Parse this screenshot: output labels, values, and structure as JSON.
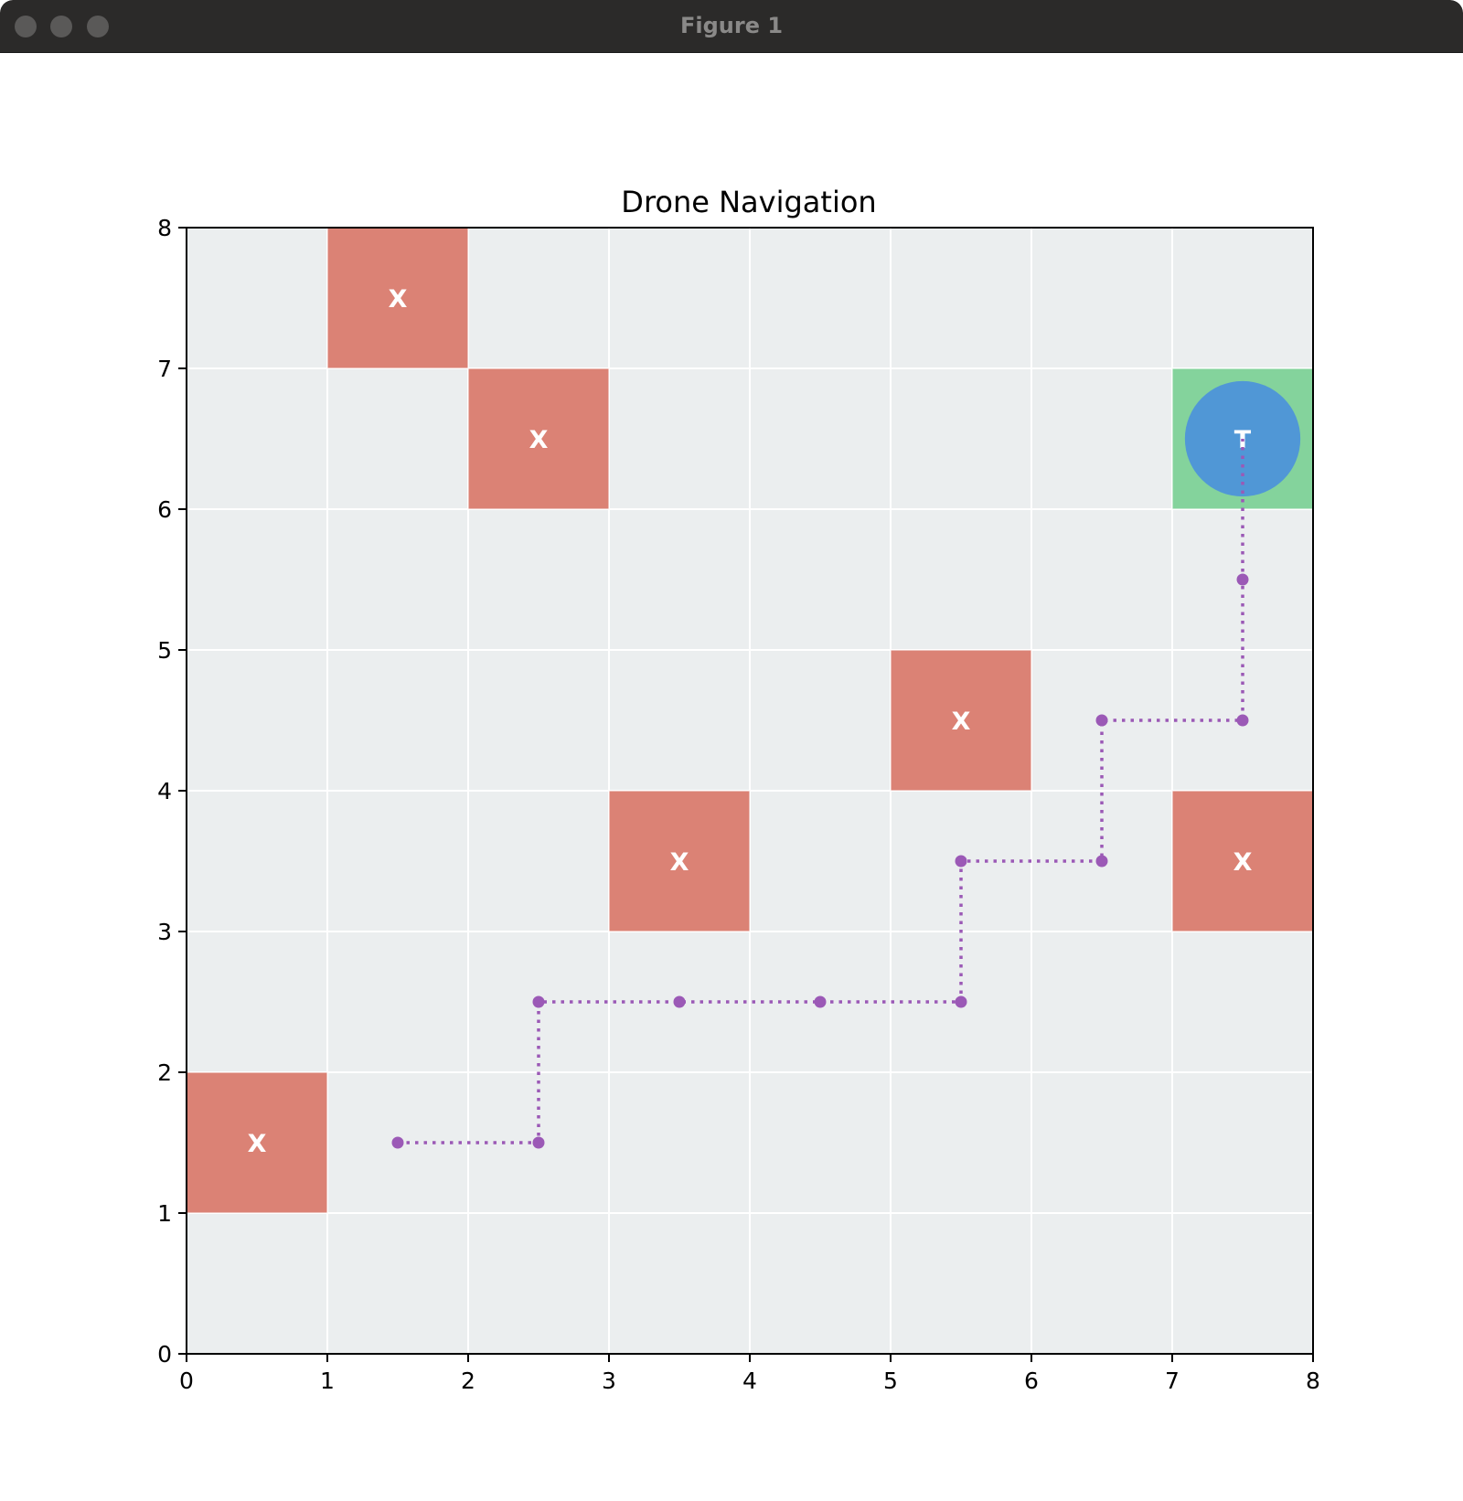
{
  "window": {
    "title": "Figure 1"
  },
  "chart_data": {
    "type": "heatmap",
    "title": "Drone Navigation",
    "xlabel": "",
    "ylabel": "",
    "xlim": [
      0,
      8
    ],
    "ylim": [
      0,
      8
    ],
    "xticks": [
      "0",
      "1",
      "2",
      "3",
      "4",
      "5",
      "6",
      "7",
      "8"
    ],
    "yticks": [
      "0",
      "1",
      "2",
      "3",
      "4",
      "5",
      "6",
      "7",
      "8"
    ],
    "grid": true,
    "obstacles": [
      {
        "col": 0,
        "row": 1,
        "label": "X"
      },
      {
        "col": 1,
        "row": 7,
        "label": "X"
      },
      {
        "col": 2,
        "row": 6,
        "label": "X"
      },
      {
        "col": 3,
        "row": 3,
        "label": "X"
      },
      {
        "col": 5,
        "row": 4,
        "label": "X"
      },
      {
        "col": 7,
        "row": 3,
        "label": "X"
      }
    ],
    "target": {
      "col": 7,
      "row": 6,
      "label": "T"
    },
    "drone": {
      "x": 7.5,
      "y": 6.5
    },
    "path": {
      "x": [
        1.5,
        2.5,
        2.5,
        3.5,
        4.5,
        5.5,
        5.5,
        6.5,
        6.5,
        7.5,
        7.5,
        7.5
      ],
      "y": [
        1.5,
        1.5,
        2.5,
        2.5,
        2.5,
        2.5,
        3.5,
        3.5,
        4.5,
        4.5,
        5.5,
        6.5
      ],
      "style": "dotted",
      "markers": [
        true,
        true,
        true,
        true,
        true,
        true,
        true,
        true,
        true,
        true,
        true,
        false
      ]
    },
    "colors": {
      "background": "#ebeeef",
      "grid": "#ffffff",
      "obstacle": "#db8275",
      "target": "#84d39c",
      "drone": "#5097d6",
      "path": "#9b59b6"
    }
  }
}
